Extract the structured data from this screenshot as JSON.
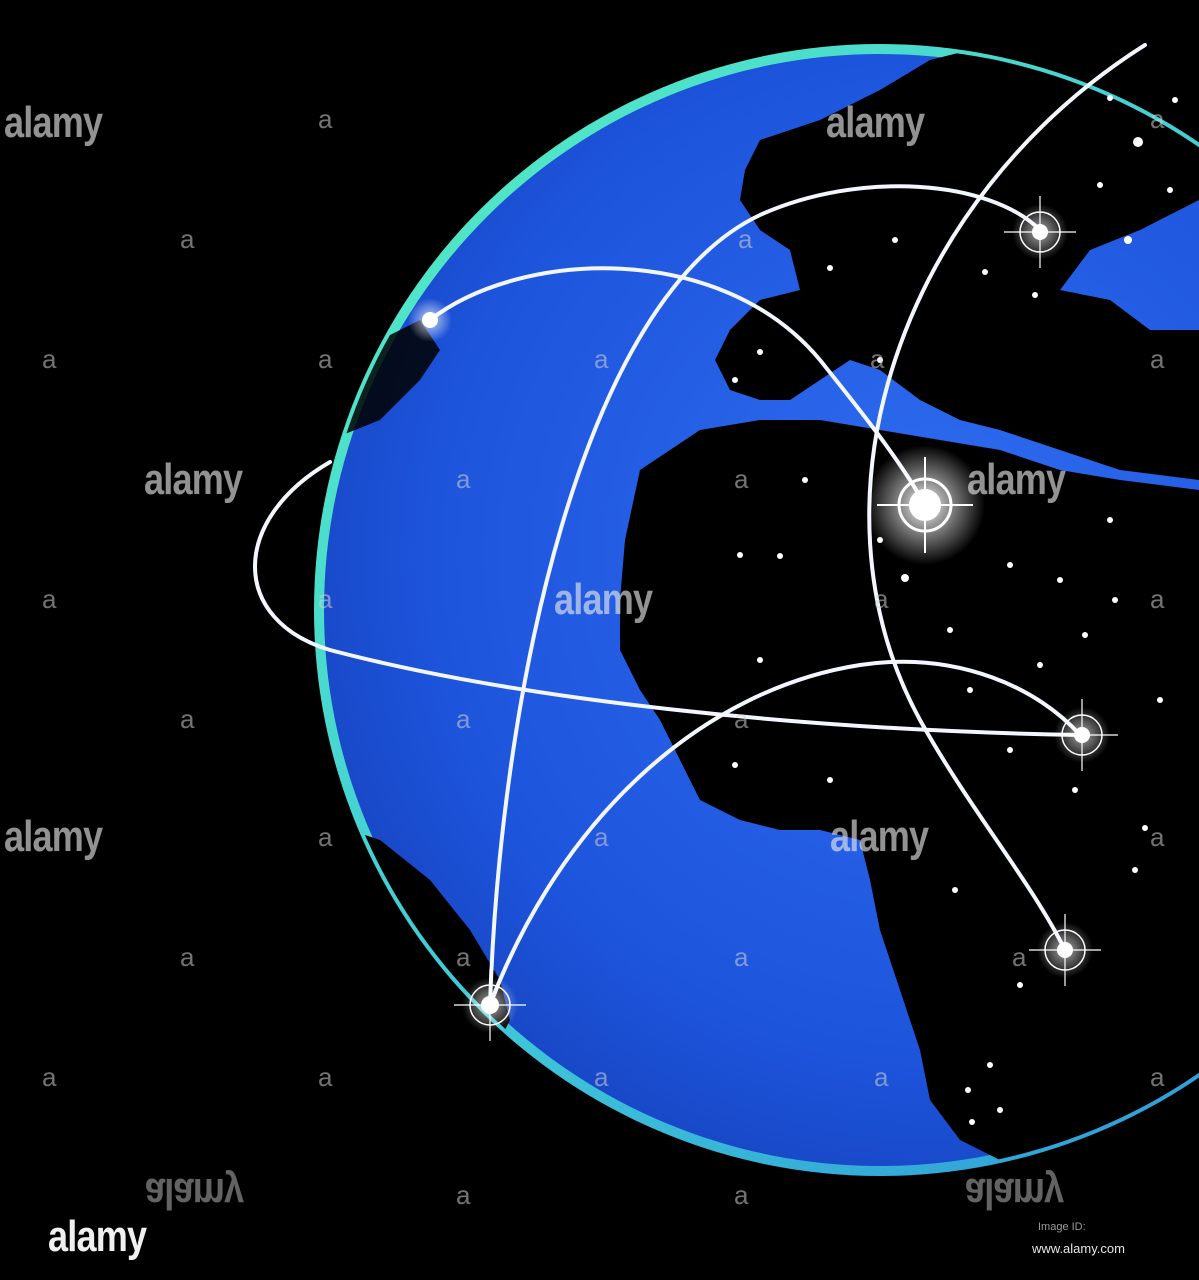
{
  "watermark": {
    "brand": "alamy",
    "mark": "a",
    "image_id": "Image ID: ",
    "url": "www.alamy.com"
  },
  "colors": {
    "background": "#000000",
    "ocean": "#1e5be0",
    "land": "#000000",
    "rim": "#3fe0a0",
    "routes": "#f2f6ff"
  },
  "icons": [
    "globe",
    "crosshair-target",
    "flight-route"
  ]
}
